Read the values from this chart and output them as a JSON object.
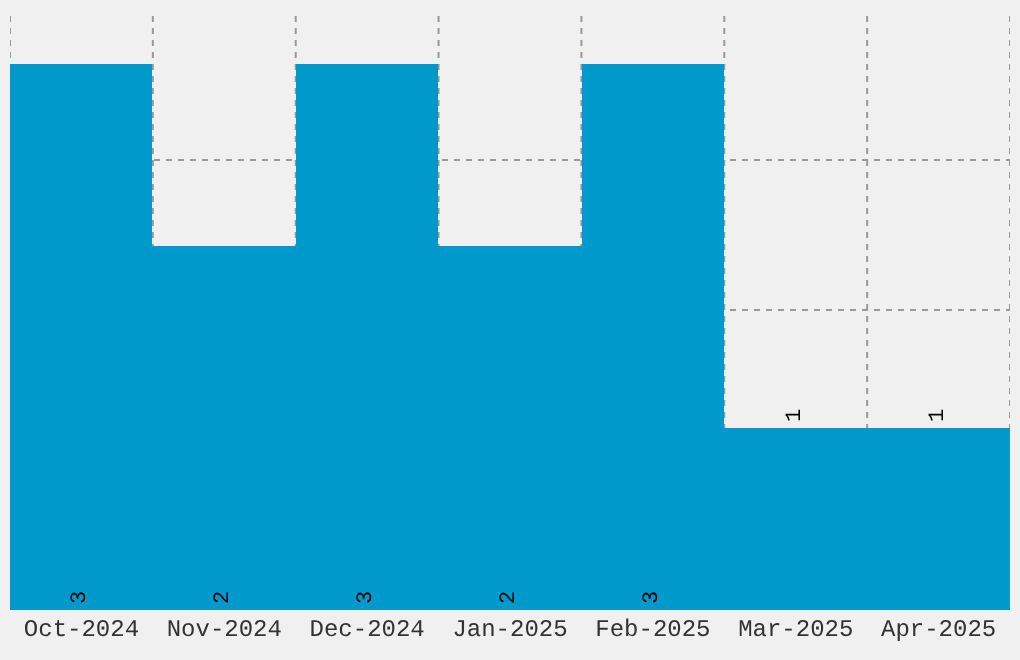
{
  "chart_data": {
    "type": "bar",
    "categories": [
      "Oct-2024",
      "Nov-2024",
      "Dec-2024",
      "Jan-2025",
      "Feb-2025",
      "Mar-2025",
      "Apr-2025"
    ],
    "values": [
      3,
      2,
      3,
      2,
      3,
      1,
      1
    ],
    "color": "#0099cc",
    "data_labels": true,
    "ylim": [
      0,
      3.3
    ],
    "grid": true,
    "tick_labels": "x"
  }
}
